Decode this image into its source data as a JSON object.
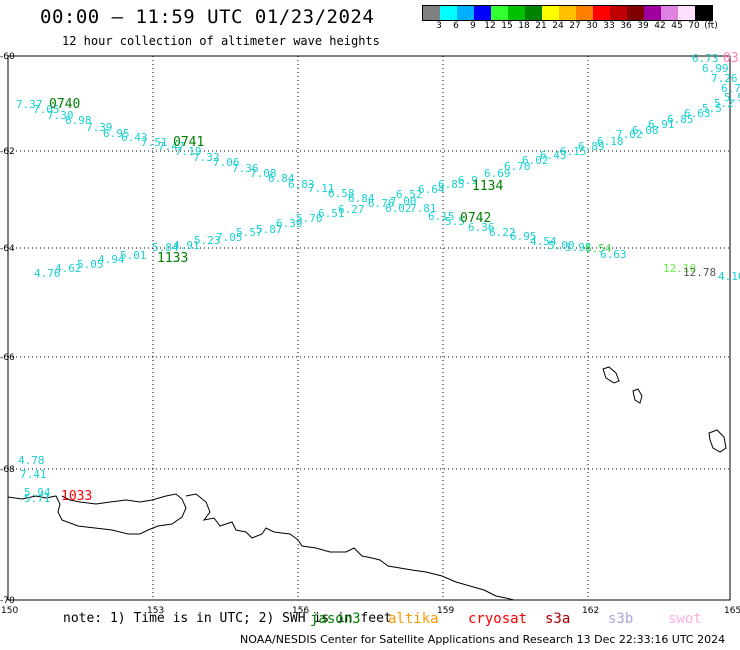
{
  "title": "00:00 – 11:59 UTC 01/23/2024",
  "subtitle": "12 hour collection of altimeter wave heights",
  "colorbar": {
    "colors": [
      "#808080",
      "#00ffff",
      "#00b0ff",
      "#0000ff",
      "#33ff33",
      "#00c000",
      "#008000",
      "#ffff00",
      "#ffc000",
      "#ff8000",
      "#ff0000",
      "#c00000",
      "#800000",
      "#a000a0",
      "#e080e0",
      "#ffe0ff",
      "#000000"
    ],
    "labels": [
      "3",
      "6",
      "9",
      "12",
      "15",
      "18",
      "21",
      "24",
      "27",
      "30",
      "33",
      "36",
      "39",
      "42",
      "45",
      "70",
      "(ft)"
    ]
  },
  "axes": {
    "x_ticks": [
      "150",
      "153",
      "156",
      "159",
      "162",
      "165"
    ],
    "y_ticks": [
      "-60",
      "-62",
      "-64",
      "-66",
      "-68",
      "-70"
    ]
  },
  "passes": [
    {
      "id": "0740",
      "color": "#008000"
    },
    {
      "id": "0741",
      "color": "#008000"
    },
    {
      "id": "1134",
      "color": "#008000"
    },
    {
      "id": "0742",
      "color": "#008000"
    },
    {
      "id": "1133",
      "color": "#008000"
    },
    {
      "id": "1033",
      "color": "#ff0000"
    },
    {
      "id": "03",
      "color": "#ff80c0"
    }
  ],
  "wave_heights": {
    "track_a": [
      "7.37",
      "7.05",
      "7.30",
      "6.98",
      "7.39",
      "6.95",
      "6.43",
      "7.51",
      "7.47",
      "7.19",
      "7.32",
      "7.06",
      "7.36",
      "7.08",
      "6.84",
      "6.83",
      "7.11",
      "6.58",
      "6.84",
      "6.76",
      "7.00",
      "6.02",
      "7.81",
      "6.15",
      "5.5",
      "6.36",
      "6.22",
      "6.95",
      "4.54",
      "5.00",
      "5.98",
      "6.54",
      "6.63",
      "12.10",
      "12.78",
      "4.16"
    ],
    "track_b": [
      "4.76",
      "4.62",
      "5.05",
      "4.94",
      "5.01",
      "5.84",
      "4.91",
      "5.23",
      "7.05",
      "5.57",
      "5.87",
      "6.39",
      "5.70",
      "6.51",
      "6.27",
      "6.52",
      "6.64",
      "6.85",
      "6.9",
      "6.69",
      "6.70",
      "6.02",
      "6.43",
      "6.15",
      "6.89",
      "6.18",
      "7.02",
      "6.08",
      "6.91",
      "6.85",
      "6.63",
      "5.5",
      "5.2",
      "5.97"
    ],
    "top_right": [
      "6.73",
      "6.99",
      "7.26",
      "6.79"
    ],
    "bottom_left": [
      "4.78",
      "7.41",
      "5.94",
      "5.71"
    ]
  },
  "note": "note: 1) Time is in UTC; 2) SWH is in feet",
  "note_satellites": [
    {
      "name": "jason3",
      "color": "#008000"
    },
    {
      "name": "altika",
      "color": "#ff9900"
    },
    {
      "name": "cryosat",
      "color": "#ff0000"
    },
    {
      "name": "s3a",
      "color": "#b00000"
    },
    {
      "name": "s3b",
      "color": "#b0a0e0"
    },
    {
      "name": "swot",
      "color": "#ffb0e0"
    }
  ],
  "footer": "NOAA/NESDIS Center for Satellite Applications and Research   13 Dec 22:33:16 UTC 2024"
}
